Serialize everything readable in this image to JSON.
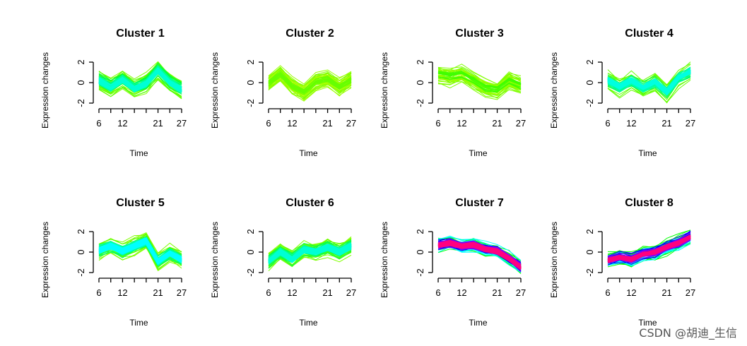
{
  "colors": {
    "background": "#ffffff",
    "membership_low": "#00ff00",
    "membership_mid": "#00ffff",
    "membership_high_blue": "#0000ff",
    "membership_top": "#ff0080"
  },
  "watermark": "CSDN @胡迪_生信",
  "chart_data": [
    {
      "type": "line",
      "title": "Cluster 1",
      "xlabel": "Time",
      "ylabel": "Expression changes",
      "x": [
        6,
        9,
        12,
        15,
        18,
        21,
        24,
        27
      ],
      "xticks": [
        6,
        12,
        21,
        27
      ],
      "yticks": [
        -2,
        0,
        2
      ],
      "ylim": [
        -2,
        2
      ],
      "center_profile": [
        0.2,
        -0.5,
        0.3,
        -0.6,
        -0.1,
        1.2,
        0.0,
        -0.7
      ],
      "spread": 0.95,
      "palette": [
        "#80ff00",
        "#55ff00",
        "#00ff40",
        "#00ff9a",
        "#00ffd5"
      ]
    },
    {
      "type": "line",
      "title": "Cluster 2",
      "xlabel": "Time",
      "ylabel": "Expression changes",
      "x": [
        6,
        9,
        12,
        15,
        18,
        21,
        24,
        27
      ],
      "xticks": [
        6,
        12,
        21,
        27
      ],
      "yticks": [
        -2,
        0,
        2
      ],
      "ylim": [
        -2,
        2
      ],
      "center_profile": [
        0.0,
        0.9,
        -0.3,
        -0.9,
        0.1,
        0.4,
        -0.4,
        0.3
      ],
      "spread": 0.8,
      "palette": [
        "#99ff00",
        "#80ff00",
        "#aaff00",
        "#66ff00"
      ]
    },
    {
      "type": "line",
      "title": "Cluster 3",
      "xlabel": "Time",
      "ylabel": "Expression changes",
      "x": [
        6,
        9,
        12,
        15,
        18,
        21,
        24,
        27
      ],
      "xticks": [
        6,
        12,
        21,
        27
      ],
      "yticks": [
        -2,
        0,
        2
      ],
      "ylim": [
        -2,
        2
      ],
      "center_profile": [
        0.8,
        0.6,
        0.8,
        0.2,
        -0.5,
        -0.7,
        0.2,
        -0.3
      ],
      "spread": 0.9,
      "palette": [
        "#80ff00",
        "#66ff00",
        "#99ff00",
        "#40ff00"
      ]
    },
    {
      "type": "line",
      "title": "Cluster 4",
      "xlabel": "Time",
      "ylabel": "Expression changes",
      "x": [
        6,
        9,
        12,
        15,
        18,
        21,
        24,
        27
      ],
      "xticks": [
        6,
        12,
        21,
        27
      ],
      "yticks": [
        -2,
        0,
        2
      ],
      "ylim": [
        -2,
        2
      ],
      "center_profile": [
        0.3,
        -0.4,
        0.2,
        -0.5,
        0.1,
        -0.9,
        0.5,
        1.1
      ],
      "spread": 0.9,
      "palette": [
        "#66ff00",
        "#40ff00",
        "#00ff60",
        "#00ffb0",
        "#00ffe0"
      ]
    },
    {
      "type": "line",
      "title": "Cluster 5",
      "xlabel": "Time",
      "ylabel": "Expression changes",
      "x": [
        6,
        9,
        12,
        15,
        18,
        21,
        24,
        27
      ],
      "xticks": [
        6,
        12,
        21,
        27
      ],
      "yticks": [
        -2,
        0,
        2
      ],
      "ylim": [
        -2,
        2
      ],
      "center_profile": [
        0.2,
        0.6,
        0.1,
        0.6,
        1.1,
        -0.9,
        -0.1,
        -0.7
      ],
      "spread": 0.9,
      "palette": [
        "#80ff00",
        "#55ff00",
        "#00ff60",
        "#00ffb0",
        "#00ffff"
      ]
    },
    {
      "type": "line",
      "title": "Cluster 6",
      "xlabel": "Time",
      "ylabel": "Expression changes",
      "x": [
        6,
        9,
        12,
        15,
        18,
        21,
        24,
        27
      ],
      "xticks": [
        6,
        12,
        21,
        27
      ],
      "yticks": [
        -2,
        0,
        2
      ],
      "ylim": [
        -2,
        2
      ],
      "center_profile": [
        -0.9,
        0.0,
        -0.7,
        0.2,
        0.0,
        0.5,
        0.0,
        0.6
      ],
      "spread": 0.9,
      "palette": [
        "#80ff00",
        "#55ff00",
        "#00ff55",
        "#00ffa0",
        "#00ffd5"
      ]
    },
    {
      "type": "line",
      "title": "Cluster 7",
      "xlabel": "Time",
      "ylabel": "Expression changes",
      "x": [
        6,
        9,
        12,
        15,
        18,
        21,
        24,
        27
      ],
      "xticks": [
        6,
        12,
        21,
        27
      ],
      "yticks": [
        -2,
        0,
        2
      ],
      "ylim": [
        -2,
        2
      ],
      "center_profile": [
        0.7,
        0.9,
        0.6,
        0.7,
        0.3,
        0.1,
        -0.6,
        -1.5
      ],
      "spread": 0.75,
      "palette": [
        "#00ff00",
        "#00ffff",
        "#0000ff",
        "#8000ff",
        "#ff0080"
      ]
    },
    {
      "type": "line",
      "title": "Cluster 8",
      "xlabel": "Time",
      "ylabel": "Expression changes",
      "x": [
        6,
        9,
        12,
        15,
        18,
        21,
        24,
        27
      ],
      "xticks": [
        6,
        12,
        21,
        27
      ],
      "yticks": [
        -2,
        0,
        2
      ],
      "ylim": [
        -2,
        2
      ],
      "center_profile": [
        -0.8,
        -0.5,
        -0.7,
        -0.2,
        0.0,
        0.5,
        0.9,
        1.5
      ],
      "spread": 0.75,
      "palette": [
        "#00ff00",
        "#00ffff",
        "#0000ff",
        "#8000ff",
        "#ff0080"
      ]
    }
  ]
}
